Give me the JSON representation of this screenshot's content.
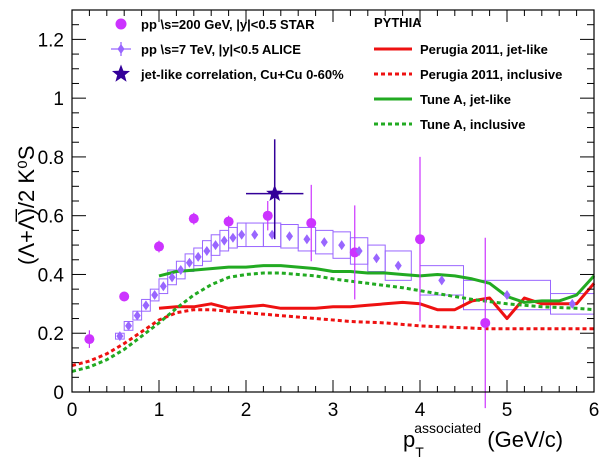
{
  "chart_data": {
    "type": "scatter",
    "xlim": [
      0,
      6
    ],
    "ylim": [
      0,
      1.3
    ],
    "x_ticks": [
      0,
      1,
      2,
      3,
      4,
      5,
      6
    ],
    "y_ticks": [
      0,
      0.2,
      0.4,
      0.6,
      0.8,
      1,
      1.2
    ],
    "x_tick_labels": [
      "0",
      "1",
      "2",
      "3",
      "4",
      "5",
      "6"
    ],
    "y_tick_labels": [
      "0",
      "0.2",
      "0.4",
      "0.6",
      "0.8",
      "1",
      "1.2"
    ],
    "xlabel_main": "p",
    "xlabel_sub": "T",
    "xlabel_sup": "associated",
    "xlabel_unit": " (GeV/c)",
    "ylabel": "(Λ+Λ̅)/2 K⁰S",
    "legend_left": [
      {
        "label": "pp  \\s=200 GeV,  |y|<0.5 STAR",
        "color": "#cc33ff",
        "marker": "circle"
      },
      {
        "label": "pp  \\s=7 TeV,  |y|<0.5 ALICE",
        "color": "#9966ff",
        "marker": "diamond-bar"
      },
      {
        "label": "jet-like correlation, Cu+Cu 0-60%",
        "color": "#330099",
        "marker": "star"
      }
    ],
    "legend_right_title": "PYTHIA",
    "legend_right": [
      {
        "label": "Perugia 2011, jet-like",
        "color": "#ee1111",
        "dash": "solid"
      },
      {
        "label": "Perugia 2011, inclusive",
        "color": "#ee1111",
        "dash": "dotted"
      },
      {
        "label": "Tune A, jet-like",
        "color": "#22aa22",
        "dash": "solid"
      },
      {
        "label": "Tune A, inclusive",
        "color": "#22aa22",
        "dash": "dotted"
      }
    ],
    "series": [
      {
        "name": "pp  \\s=200 GeV,  |y|<0.5 STAR",
        "kind": "points",
        "color": "#cc33ff",
        "points": [
          {
            "x": 0.2,
            "y": 0.18,
            "err": 0.03
          },
          {
            "x": 0.6,
            "y": 0.325,
            "err": 0.01
          },
          {
            "x": 1.0,
            "y": 0.495,
            "err": 0.02
          },
          {
            "x": 1.4,
            "y": 0.59,
            "err": 0.02
          },
          {
            "x": 1.8,
            "y": 0.58,
            "err": 0.02
          },
          {
            "x": 2.25,
            "y": 0.6,
            "err": 0.05
          },
          {
            "x": 2.75,
            "y": 0.575,
            "err": 0.13
          },
          {
            "x": 3.25,
            "y": 0.475,
            "err": 0.16
          },
          {
            "x": 4.0,
            "y": 0.52,
            "err": 0.28
          },
          {
            "x": 4.75,
            "y": 0.235,
            "err": 0.29
          }
        ]
      },
      {
        "name": "pp  \\s=7 TeV,  |y|<0.5 ALICE",
        "kind": "boxes",
        "color": "#9966ff",
        "points": [
          {
            "x": 0.55,
            "y": 0.19,
            "w": 0.05,
            "sys": 0.01
          },
          {
            "x": 0.65,
            "y": 0.225,
            "w": 0.05,
            "sys": 0.015
          },
          {
            "x": 0.75,
            "y": 0.26,
            "w": 0.05,
            "sys": 0.015
          },
          {
            "x": 0.85,
            "y": 0.295,
            "w": 0.05,
            "sys": 0.02
          },
          {
            "x": 0.95,
            "y": 0.33,
            "w": 0.05,
            "sys": 0.02
          },
          {
            "x": 1.05,
            "y": 0.36,
            "w": 0.05,
            "sys": 0.025
          },
          {
            "x": 1.15,
            "y": 0.39,
            "w": 0.05,
            "sys": 0.025
          },
          {
            "x": 1.25,
            "y": 0.415,
            "w": 0.05,
            "sys": 0.03
          },
          {
            "x": 1.35,
            "y": 0.44,
            "w": 0.05,
            "sys": 0.03
          },
          {
            "x": 1.45,
            "y": 0.46,
            "w": 0.05,
            "sys": 0.03
          },
          {
            "x": 1.55,
            "y": 0.48,
            "w": 0.05,
            "sys": 0.035
          },
          {
            "x": 1.65,
            "y": 0.5,
            "w": 0.05,
            "sys": 0.035
          },
          {
            "x": 1.75,
            "y": 0.515,
            "w": 0.05,
            "sys": 0.035
          },
          {
            "x": 1.85,
            "y": 0.525,
            "w": 0.05,
            "sys": 0.035
          },
          {
            "x": 1.95,
            "y": 0.535,
            "w": 0.05,
            "sys": 0.04
          },
          {
            "x": 2.1,
            "y": 0.535,
            "w": 0.1,
            "sys": 0.04
          },
          {
            "x": 2.3,
            "y": 0.535,
            "w": 0.1,
            "sys": 0.04
          },
          {
            "x": 2.5,
            "y": 0.53,
            "w": 0.1,
            "sys": 0.04
          },
          {
            "x": 2.7,
            "y": 0.52,
            "w": 0.1,
            "sys": 0.04
          },
          {
            "x": 2.9,
            "y": 0.51,
            "w": 0.1,
            "sys": 0.04
          },
          {
            "x": 3.1,
            "y": 0.5,
            "w": 0.1,
            "sys": 0.045
          },
          {
            "x": 3.3,
            "y": 0.48,
            "w": 0.1,
            "sys": 0.045
          },
          {
            "x": 3.5,
            "y": 0.455,
            "w": 0.1,
            "sys": 0.045
          },
          {
            "x": 3.75,
            "y": 0.43,
            "w": 0.15,
            "sys": 0.05
          },
          {
            "x": 4.25,
            "y": 0.38,
            "w": 0.25,
            "sys": 0.05
          },
          {
            "x": 5.0,
            "y": 0.33,
            "w": 0.5,
            "sys": 0.05
          },
          {
            "x": 5.75,
            "y": 0.3,
            "w": 0.25,
            "sys": 0.035
          }
        ]
      },
      {
        "name": "jet-like correlation, Cu+Cu 0-60%",
        "kind": "star",
        "color": "#330099",
        "points": [
          {
            "x": 2.33,
            "y": 0.675,
            "xerr": 0.33,
            "err_up": 0.185,
            "err_down": 0.155
          }
        ]
      },
      {
        "name": "Perugia 2011, jet-like",
        "kind": "line",
        "color": "#ee1111",
        "dash": "solid",
        "x": [
          1.0,
          1.2,
          1.4,
          1.6,
          1.8,
          2.0,
          2.2,
          2.4,
          2.6,
          2.8,
          3.0,
          3.2,
          3.4,
          3.6,
          3.8,
          4.0,
          4.2,
          4.4,
          4.6,
          4.8,
          5.0,
          5.2,
          5.4,
          5.6,
          5.8,
          6.0
        ],
        "y": [
          0.285,
          0.29,
          0.29,
          0.3,
          0.285,
          0.29,
          0.295,
          0.285,
          0.285,
          0.285,
          0.29,
          0.29,
          0.295,
          0.3,
          0.305,
          0.3,
          0.28,
          0.28,
          0.31,
          0.32,
          0.25,
          0.32,
          0.3,
          0.3,
          0.3,
          0.37
        ]
      },
      {
        "name": "Perugia 2011, inclusive",
        "kind": "line",
        "color": "#ee1111",
        "dash": "dotted",
        "x": [
          0.0,
          0.2,
          0.4,
          0.6,
          0.8,
          1.0,
          1.2,
          1.4,
          1.6,
          1.8,
          2.0,
          2.4,
          2.8,
          3.2,
          3.6,
          4.0,
          4.4,
          4.8,
          5.2,
          5.6,
          6.0
        ],
        "y": [
          0.09,
          0.105,
          0.13,
          0.165,
          0.205,
          0.245,
          0.27,
          0.28,
          0.28,
          0.275,
          0.27,
          0.26,
          0.25,
          0.24,
          0.235,
          0.225,
          0.22,
          0.215,
          0.215,
          0.215,
          0.215
        ]
      },
      {
        "name": "Tune A, jet-like",
        "kind": "line",
        "color": "#22aa22",
        "dash": "solid",
        "x": [
          1.0,
          1.2,
          1.4,
          1.6,
          1.8,
          2.0,
          2.2,
          2.4,
          2.6,
          2.8,
          3.0,
          3.2,
          3.4,
          3.6,
          3.8,
          4.0,
          4.2,
          4.4,
          4.6,
          4.8,
          5.0,
          5.2,
          5.4,
          5.6,
          5.8,
          6.0
        ],
        "y": [
          0.395,
          0.41,
          0.415,
          0.42,
          0.425,
          0.425,
          0.43,
          0.43,
          0.425,
          0.42,
          0.41,
          0.41,
          0.405,
          0.405,
          0.4,
          0.395,
          0.4,
          0.395,
          0.385,
          0.37,
          0.325,
          0.305,
          0.31,
          0.31,
          0.33,
          0.395
        ]
      },
      {
        "name": "Tune A, inclusive",
        "kind": "line",
        "color": "#22aa22",
        "dash": "dotted",
        "x": [
          0.0,
          0.2,
          0.4,
          0.6,
          0.8,
          1.0,
          1.2,
          1.4,
          1.6,
          1.8,
          2.0,
          2.2,
          2.4,
          2.6,
          2.8,
          3.0,
          3.4,
          3.8,
          4.2,
          4.6,
          5.0,
          5.4,
          5.8,
          6.0
        ],
        "y": [
          0.07,
          0.085,
          0.11,
          0.145,
          0.19,
          0.235,
          0.285,
          0.33,
          0.365,
          0.39,
          0.4,
          0.405,
          0.405,
          0.4,
          0.395,
          0.385,
          0.37,
          0.355,
          0.335,
          0.315,
          0.3,
          0.29,
          0.285,
          0.28
        ]
      }
    ]
  }
}
